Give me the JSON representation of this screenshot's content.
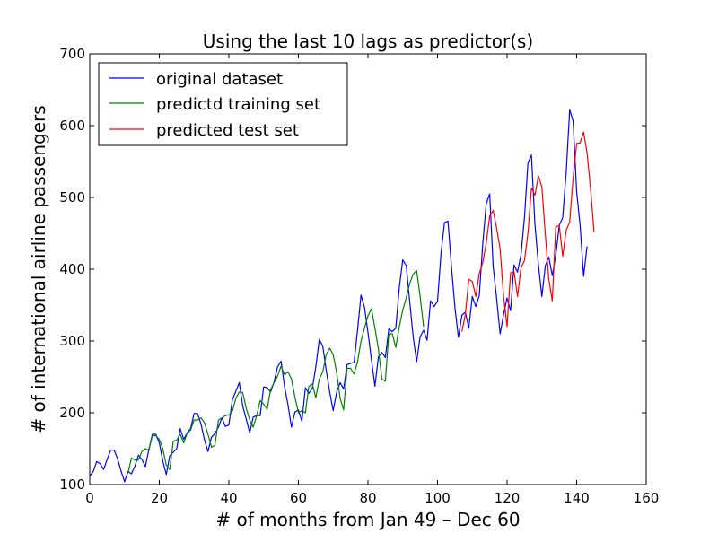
{
  "chart_data": {
    "type": "line",
    "title": "Using the last 10 lags as predictor(s)",
    "xlabel": "# of months from Jan 49 – Dec 60",
    "ylabel": "# of international airline passengers",
    "xlim": [
      0,
      160
    ],
    "ylim": [
      100,
      700
    ],
    "xticks": [
      0,
      20,
      40,
      60,
      80,
      100,
      120,
      140,
      160
    ],
    "yticks": [
      100,
      200,
      300,
      400,
      500,
      600,
      700
    ],
    "grid": false,
    "legend_position": "top-left",
    "series": [
      {
        "name": "original dataset",
        "color": "#0000ff",
        "x_start": 0,
        "values": [
          112,
          118,
          132,
          129,
          121,
          135,
          148,
          148,
          136,
          119,
          104,
          118,
          115,
          126,
          141,
          135,
          125,
          149,
          170,
          170,
          158,
          133,
          114,
          140,
          145,
          150,
          178,
          163,
          172,
          178,
          199,
          199,
          184,
          162,
          146,
          166,
          171,
          180,
          193,
          181,
          183,
          218,
          230,
          242,
          209,
          191,
          172,
          194,
          196,
          196,
          236,
          235,
          229,
          243,
          264,
          272,
          237,
          211,
          180,
          201,
          204,
          188,
          235,
          227,
          234,
          264,
          302,
          293,
          259,
          229,
          203,
          229,
          242,
          233,
          267,
          269,
          270,
          315,
          364,
          347,
          312,
          274,
          237,
          278,
          284,
          277,
          317,
          313,
          318,
          374,
          413,
          405,
          355,
          306,
          271,
          306,
          315,
          301,
          356,
          348,
          355,
          422,
          465,
          467,
          404,
          347,
          305,
          336,
          340,
          318,
          362,
          348,
          363,
          435,
          491,
          505,
          404,
          359,
          310,
          337,
          360,
          342,
          406,
          396,
          420,
          472,
          548,
          559,
          463,
          407,
          362,
          405,
          417,
          391,
          419,
          461,
          472,
          535,
          622,
          606,
          508,
          461,
          390,
          432
        ]
      },
      {
        "name": "predictd training set",
        "color": "#008000",
        "x_start": 11,
        "values": [
          116,
          137,
          134,
          134,
          146,
          150,
          148,
          168,
          168,
          163,
          150,
          127,
          121,
          160,
          162,
          170,
          158,
          171,
          176,
          190,
          190,
          193,
          186,
          170,
          152,
          155,
          190,
          193,
          196,
          197,
          202,
          220,
          229,
          228,
          206,
          190,
          180,
          196,
          217,
          212,
          205,
          232,
          242,
          251,
          265,
          253,
          257,
          247,
          222,
          200,
          203,
          200,
          237,
          240,
          221,
          247,
          257,
          281,
          290,
          281,
          256,
          220,
          204,
          262,
          262,
          254,
          271,
          300,
          318,
          335,
          345,
          318,
          289,
          247,
          244,
          310,
          310,
          291,
          320,
          343,
          360,
          380,
          393,
          398,
          362,
          320
        ]
      },
      {
        "name": "predicted test set",
        "color": "#ff0000",
        "x_start": 107,
        "values": [
          313,
          337,
          386,
          383,
          362,
          394,
          409,
          436,
          474,
          482,
          457,
          428,
          362,
          320,
          395,
          397,
          362,
          402,
          412,
          450,
          513,
          503,
          530,
          515,
          448,
          386,
          356,
          459,
          461,
          418,
          454,
          466,
          528,
          575,
          576,
          591,
          562,
          512,
          452
        ]
      }
    ]
  }
}
